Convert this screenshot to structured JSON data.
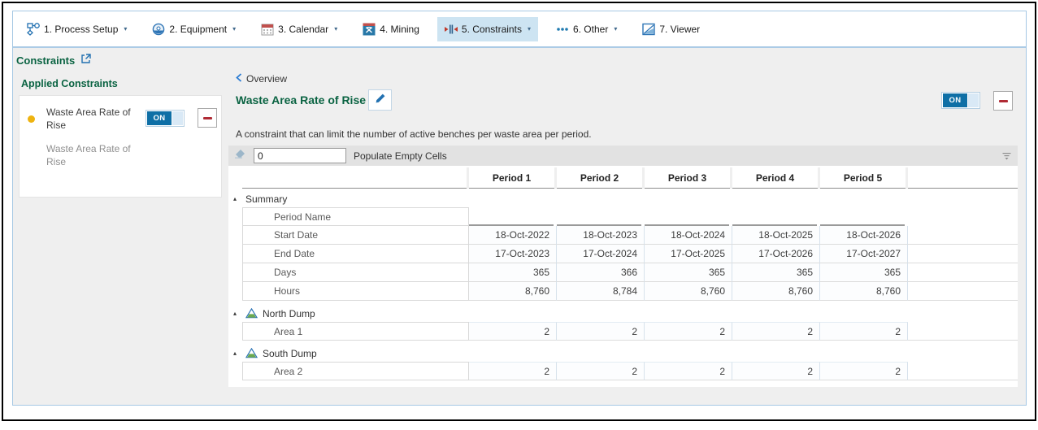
{
  "nav": {
    "tabs": [
      {
        "label": "1. Process Setup",
        "icon": "process-setup-icon",
        "has_dropdown": true,
        "selected": false
      },
      {
        "label": "2. Equipment",
        "icon": "equipment-icon",
        "has_dropdown": true,
        "selected": false
      },
      {
        "label": "3. Calendar",
        "icon": "calendar-icon",
        "has_dropdown": true,
        "selected": false
      },
      {
        "label": "4. Mining",
        "icon": "mining-icon",
        "has_dropdown": false,
        "selected": false
      },
      {
        "label": "5. Constraints",
        "icon": "constraints-icon",
        "has_dropdown": true,
        "selected": true
      },
      {
        "label": "6. Other",
        "icon": "other-icon",
        "has_dropdown": true,
        "selected": false
      },
      {
        "label": "7. Viewer",
        "icon": "viewer-icon",
        "has_dropdown": false,
        "selected": false
      }
    ]
  },
  "sidebar": {
    "title": "Constraints",
    "section_title": "Applied Constraints",
    "item": {
      "name": "Waste Area Rate of Rise",
      "subtitle": "Waste Area Rate of Rise",
      "toggle": "ON"
    }
  },
  "main": {
    "back_link": "Overview",
    "title": "Waste Area Rate of Rise",
    "description": "A constraint that can limit the number of active benches per waste area per period.",
    "toggle": "ON",
    "toolbar": {
      "populate_value": "0",
      "populate_label": "Populate Empty Cells"
    },
    "table": {
      "columns": [
        "Period 1",
        "Period 2",
        "Period 3",
        "Period 4",
        "Period 5"
      ],
      "groups": [
        {
          "label": "Summary",
          "icon": null,
          "rows": [
            {
              "label": "Period Name",
              "underline": true,
              "values": [
                "",
                "",
                "",
                "",
                ""
              ]
            },
            {
              "label": "Start Date",
              "values": [
                "18-Oct-2022",
                "18-Oct-2023",
                "18-Oct-2024",
                "18-Oct-2025",
                "18-Oct-2026"
              ]
            },
            {
              "label": "End Date",
              "values": [
                "17-Oct-2023",
                "17-Oct-2024",
                "17-Oct-2025",
                "17-Oct-2026",
                "17-Oct-2027"
              ]
            },
            {
              "label": "Days",
              "values": [
                "365",
                "366",
                "365",
                "365",
                "365"
              ]
            },
            {
              "label": "Hours",
              "values": [
                "8,760",
                "8,784",
                "8,760",
                "8,760",
                "8,760"
              ]
            }
          ]
        },
        {
          "label": "North Dump",
          "icon": "dump-icon",
          "rows": [
            {
              "label": "Area 1",
              "values": [
                "2",
                "2",
                "2",
                "2",
                "2"
              ]
            }
          ]
        },
        {
          "label": "South Dump",
          "icon": "dump-icon",
          "rows": [
            {
              "label": "Area 2",
              "values": [
                "2",
                "2",
                "2",
                "2",
                "2"
              ]
            }
          ]
        }
      ]
    }
  },
  "colors": {
    "heading_green": "#0a6342",
    "toggle_blue": "#0e6fa6",
    "selected_tab_blue": "#cde4f2",
    "remove_red": "#b02b35",
    "warning_dot_yellow": "#eeb310",
    "app_border_blue": "#a6c8e4",
    "content_gray": "#efefef"
  }
}
